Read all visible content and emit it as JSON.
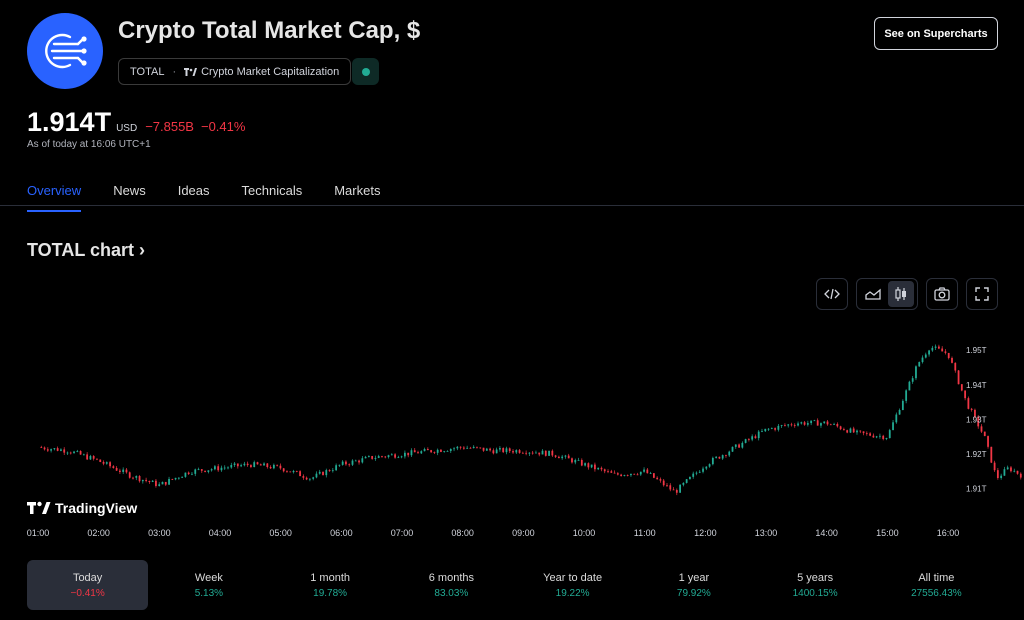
{
  "header": {
    "title": "Crypto Total Market Cap, $",
    "symbol": "TOTAL",
    "exchange": "Crypto Market Capitalization",
    "cta_label": "See on Supercharts"
  },
  "quote": {
    "price": "1.914T",
    "currency": "USD",
    "change": "−7.855B",
    "change_pct": "−0.41%",
    "as_of": "As of today at 16:06 UTC+1"
  },
  "tabs": [
    {
      "label": "Overview",
      "active": true
    },
    {
      "label": "News",
      "active": false
    },
    {
      "label": "Ideas",
      "active": false
    },
    {
      "label": "Technicals",
      "active": false
    },
    {
      "label": "Markets",
      "active": false
    }
  ],
  "chart_section": {
    "heading": "TOTAL chart ›",
    "watermark": "TradingView"
  },
  "toolbar": {
    "icons": [
      "embed-icon",
      "area-chart-icon",
      "candles-icon",
      "camera-icon",
      "fullscreen-icon"
    ],
    "active": "candles-icon"
  },
  "chart_data": {
    "type": "line",
    "x_ticks": [
      "01:00",
      "02:00",
      "03:00",
      "04:00",
      "05:00",
      "06:00",
      "07:00",
      "08:00",
      "09:00",
      "10:00",
      "11:00",
      "12:00",
      "13:00",
      "14:00",
      "15:00",
      "16:00"
    ],
    "y_ticks": [
      "1.91T",
      "1.92T",
      "1.93T",
      "1.94T",
      "1.95T"
    ],
    "ylim": [
      1.905,
      1.957
    ],
    "series": [
      {
        "x": [
          0,
          0.5,
          1.0,
          1.5,
          2.0,
          2.5,
          3.0,
          3.5,
          4.0,
          4.5,
          5.0,
          5.5,
          6.0,
          6.5,
          7.0,
          7.5,
          8.0,
          8.5,
          9.0,
          9.5,
          10.0,
          10.5,
          11.0,
          11.5,
          12.0,
          12.5,
          13.0,
          13.5,
          14.0,
          14.5,
          14.7,
          15.0,
          15.3,
          15.6,
          15.8,
          16.0,
          16.2
        ],
        "y": [
          1.922,
          1.921,
          1.918,
          1.914,
          1.911,
          1.915,
          1.916,
          1.917,
          1.916,
          1.913,
          1.917,
          1.919,
          1.92,
          1.921,
          1.922,
          1.921,
          1.921,
          1.92,
          1.917,
          1.914,
          1.915,
          1.909,
          1.917,
          1.922,
          1.927,
          1.929,
          1.929,
          1.926,
          1.925,
          1.946,
          1.951,
          1.949,
          1.935,
          1.925,
          1.913,
          1.916,
          1.914
        ]
      }
    ],
    "colors": {
      "up": "#22ab94",
      "down": "#f23645"
    }
  },
  "periods": [
    {
      "label": "Today",
      "value": "−0.41%",
      "dir": "down",
      "active": true
    },
    {
      "label": "Week",
      "value": "5.13%",
      "dir": "up",
      "active": false
    },
    {
      "label": "1 month",
      "value": "19.78%",
      "dir": "up",
      "active": false
    },
    {
      "label": "6 months",
      "value": "83.03%",
      "dir": "up",
      "active": false
    },
    {
      "label": "Year to date",
      "value": "19.22%",
      "dir": "up",
      "active": false
    },
    {
      "label": "1 year",
      "value": "79.92%",
      "dir": "up",
      "active": false
    },
    {
      "label": "5 years",
      "value": "1400.15%",
      "dir": "up",
      "active": false
    },
    {
      "label": "All time",
      "value": "27556.43%",
      "dir": "up",
      "active": false
    }
  ]
}
